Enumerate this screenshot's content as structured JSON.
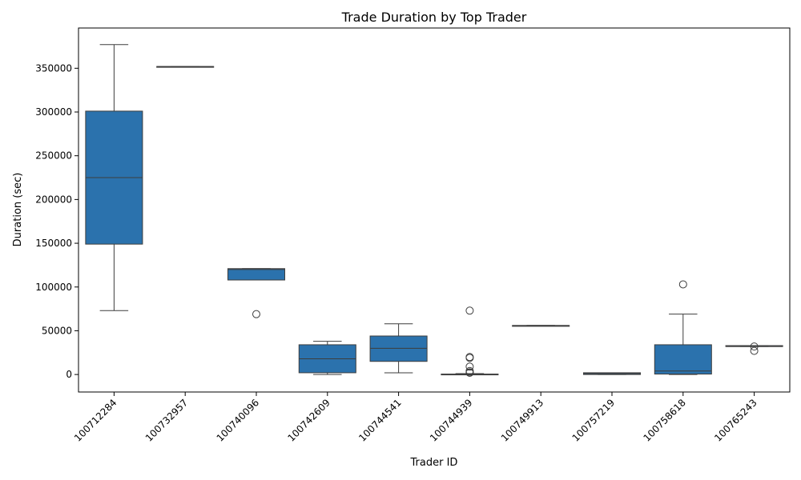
{
  "chart_data": {
    "type": "box",
    "title": "Trade Duration by Top Trader",
    "xlabel": "Trader ID",
    "ylabel": "Duration (sec)",
    "ylim": [
      -20000,
      396000
    ],
    "yticks": [
      0,
      50000,
      100000,
      150000,
      200000,
      250000,
      300000,
      350000
    ],
    "box_color": "#2b72ad",
    "line_color": "#3d3d3d",
    "categories": [
      "100712284",
      "100732957",
      "100740096",
      "100742609",
      "100744541",
      "100744939",
      "100749913",
      "100757219",
      "100758618",
      "100765243"
    ],
    "boxes": [
      {
        "min": 73000,
        "q1": 149000,
        "median": 225000,
        "q3": 301000,
        "max": 377000,
        "outliers": []
      },
      {
        "min": 352000,
        "q1": 352000,
        "median": 352000,
        "q3": 352000,
        "max": 352000,
        "outliers": []
      },
      {
        "min": 108000,
        "q1": 108000,
        "median": 120000,
        "q3": 121000,
        "max": 121000,
        "outliers": [
          69000
        ]
      },
      {
        "min": 0,
        "q1": 2000,
        "median": 18000,
        "q3": 34000,
        "max": 38000,
        "outliers": []
      },
      {
        "min": 2000,
        "q1": 15000,
        "median": 30000,
        "q3": 44000,
        "max": 58000,
        "outliers": []
      },
      {
        "min": 0,
        "q1": 0,
        "median": 100,
        "q3": 500,
        "max": 1000,
        "outliers": [
          73000,
          20000,
          19000,
          9000,
          4000,
          2500,
          2000
        ]
      },
      {
        "min": 56000,
        "q1": 56000,
        "median": 56000,
        "q3": 56000,
        "max": 56000,
        "outliers": []
      },
      {
        "min": 0,
        "q1": 0,
        "median": 1000,
        "q3": 2000,
        "max": 2000,
        "outliers": []
      },
      {
        "min": 0,
        "q1": 500,
        "median": 4000,
        "q3": 34000,
        "max": 69000,
        "outliers": [
          103000
        ]
      },
      {
        "min": 32000,
        "q1": 32000,
        "median": 32000,
        "q3": 33000,
        "max": 33000,
        "outliers": [
          32000,
          27000
        ]
      }
    ]
  }
}
